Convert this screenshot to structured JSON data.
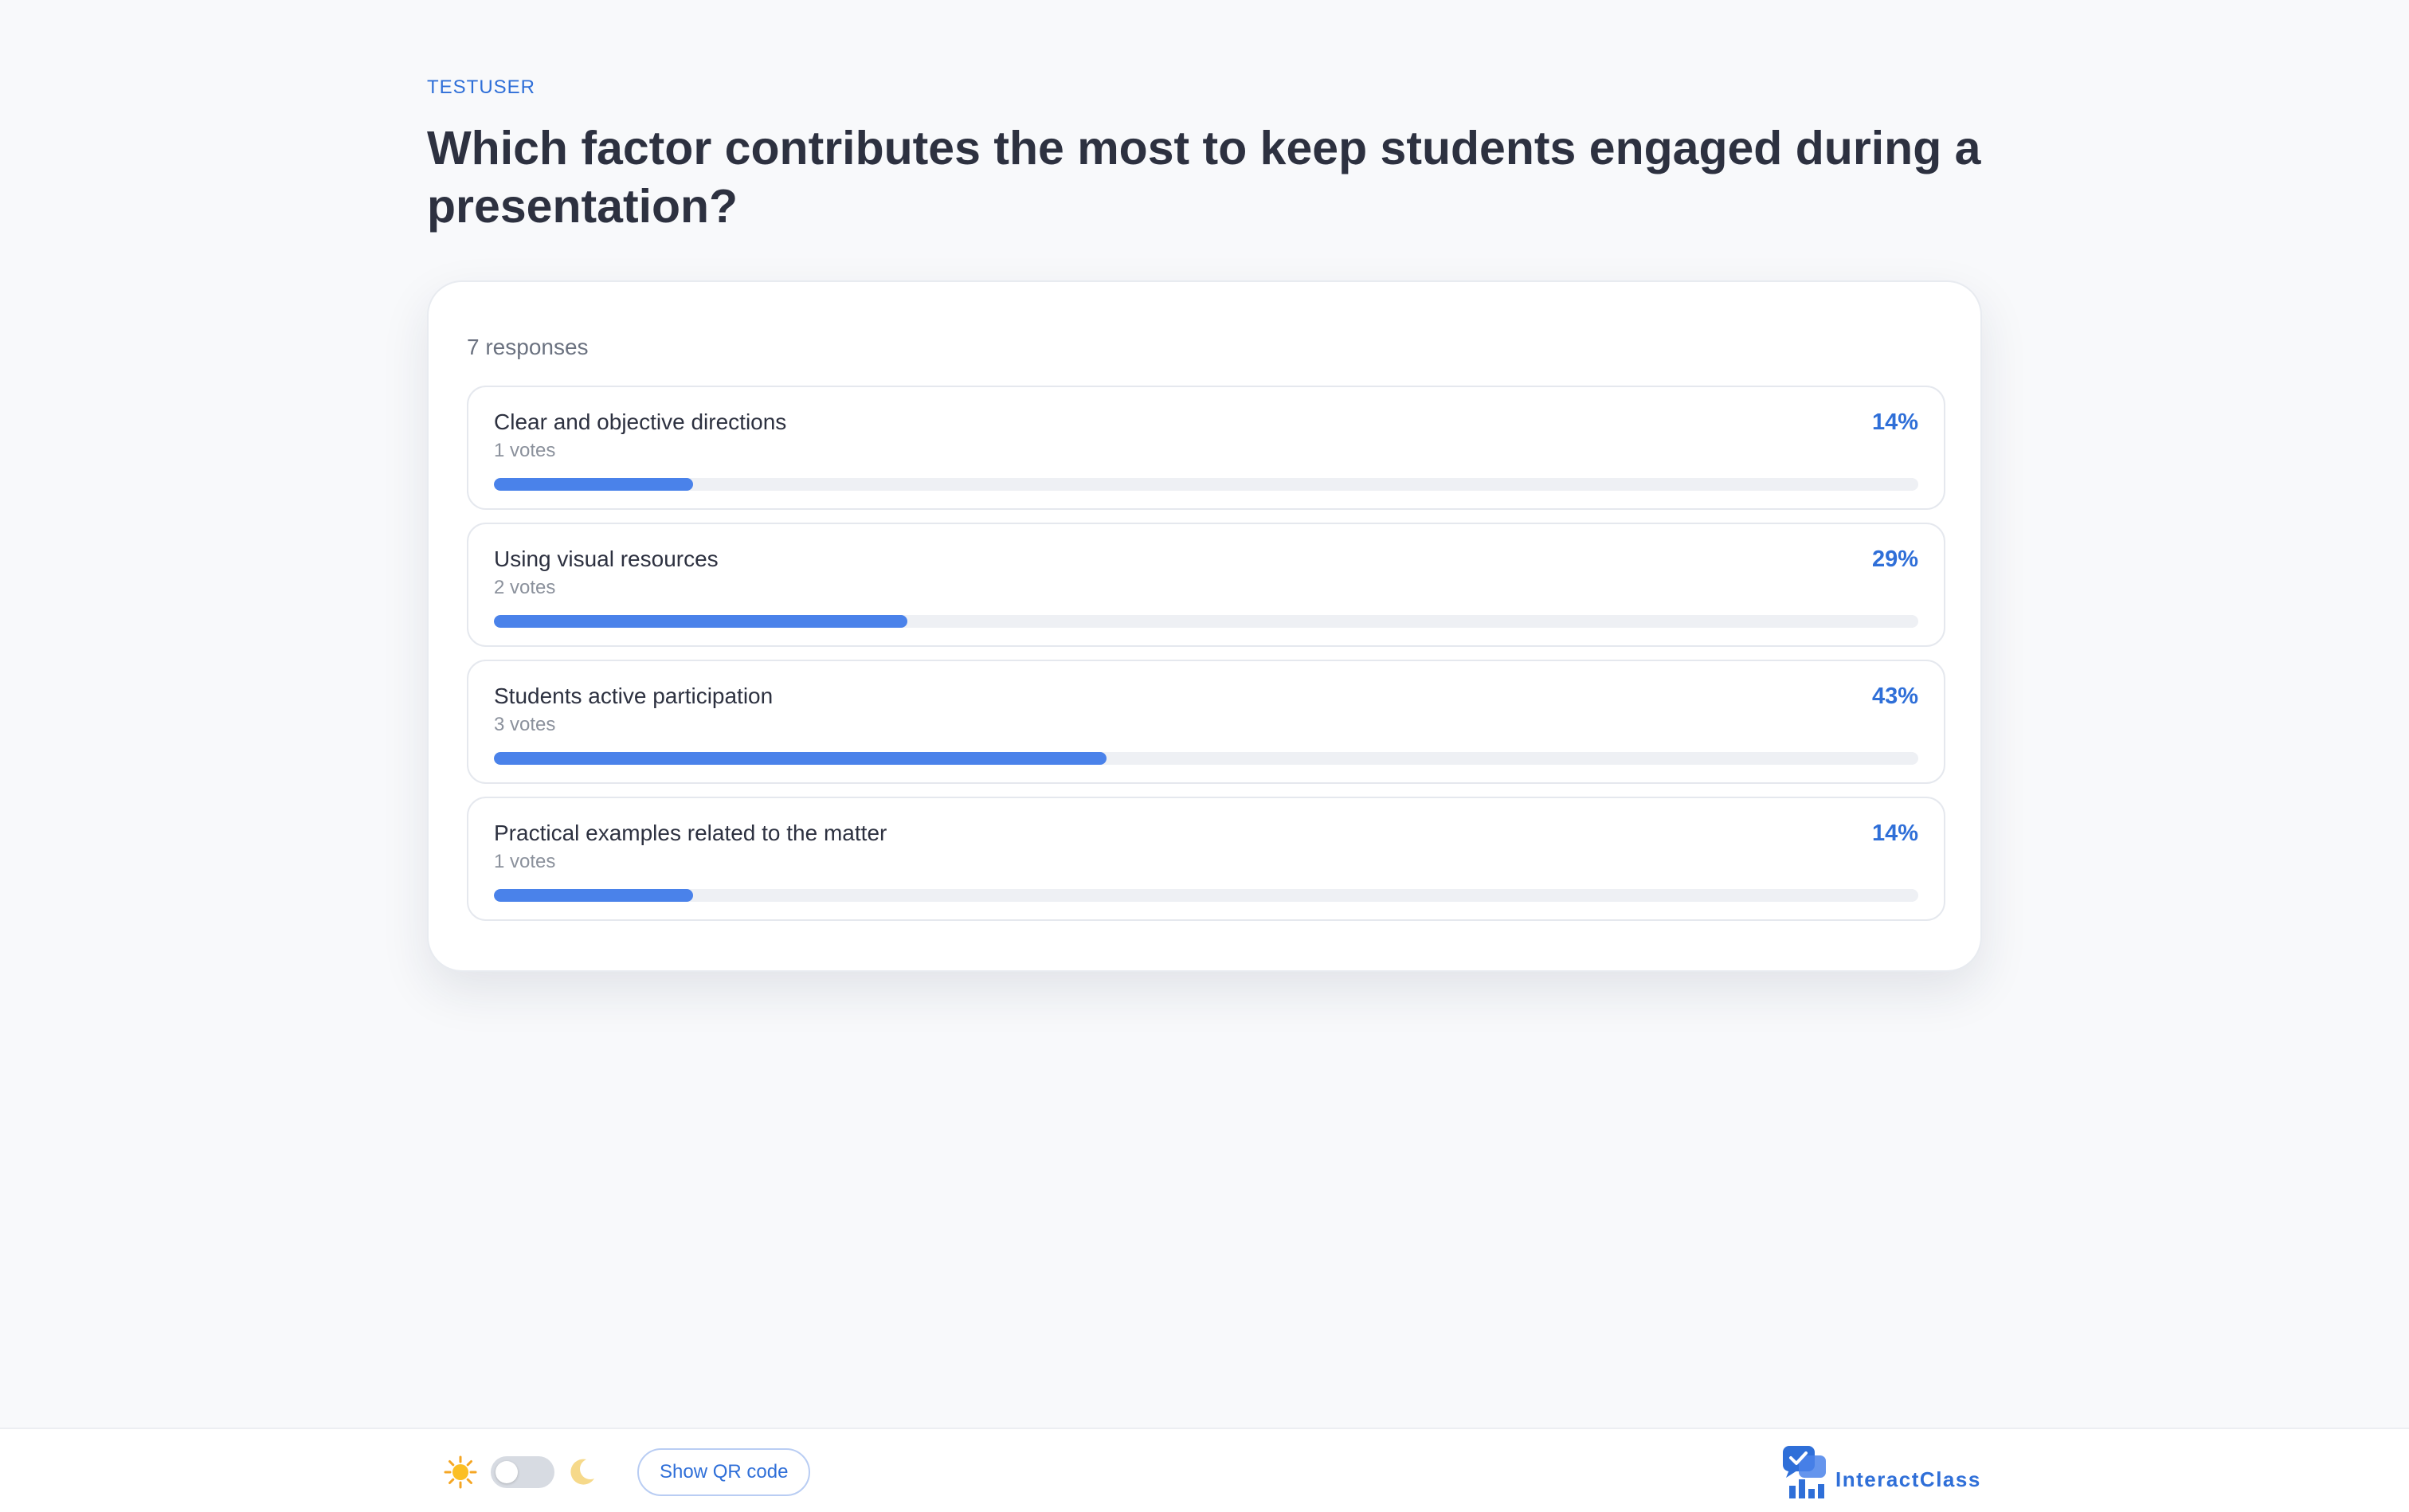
{
  "header": {
    "user": "TESTUSER",
    "question": "Which factor contributes the most to keep students engaged during a presentation?"
  },
  "poll": {
    "responses_text": "7 responses",
    "options": [
      {
        "label": "Clear and objective directions",
        "votes_text": "1 votes",
        "percent_text": "14%",
        "percent": 14
      },
      {
        "label": "Using visual resources",
        "votes_text": "2 votes",
        "percent_text": "29%",
        "percent": 29
      },
      {
        "label": "Students active participation",
        "votes_text": "3 votes",
        "percent_text": "43%",
        "percent": 43
      },
      {
        "label": "Practical examples related to the matter",
        "votes_text": "1 votes",
        "percent_text": "14%",
        "percent": 14
      }
    ]
  },
  "footer": {
    "theme_toggle_state": "light",
    "sun_icon": "sun-icon",
    "moon_icon": "moon-icon",
    "qr_button_label": "Show QR code",
    "brand_name": "InteractClass"
  },
  "colors": {
    "accent": "#2f6fd8",
    "bar_fill": "#4a82ea",
    "bar_track": "#eef0f4",
    "background": "#f8f9fb"
  }
}
